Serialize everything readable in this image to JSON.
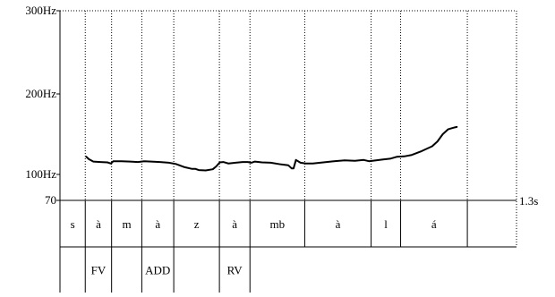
{
  "chart_data": {
    "type": "line",
    "title": "",
    "xlabel": "",
    "ylabel": "",
    "y_tick_labels": [
      "300Hz",
      "200Hz",
      "100Hz",
      "70"
    ],
    "y_tick_values": [
      300,
      200,
      100,
      70
    ],
    "x_end_label": "1.3s",
    "x_range": [
      0,
      1.3
    ],
    "grid": "dotted vertical segment boundaries",
    "segments": [
      {
        "label": "s",
        "start": 0.0,
        "end": 0.072
      },
      {
        "label": "à",
        "start": 0.072,
        "end": 0.147
      },
      {
        "label": "m",
        "start": 0.147,
        "end": 0.233
      },
      {
        "label": "à",
        "start": 0.233,
        "end": 0.324
      },
      {
        "label": "z",
        "start": 0.324,
        "end": 0.454
      },
      {
        "label": "à",
        "start": 0.454,
        "end": 0.541
      },
      {
        "label": "mb",
        "start": 0.541,
        "end": 0.697
      },
      {
        "label": "à",
        "start": 0.697,
        "end": 0.886
      },
      {
        "label": "l",
        "start": 0.886,
        "end": 0.97
      },
      {
        "label": "á",
        "start": 0.97,
        "end": 1.16
      }
    ],
    "annotations": [
      {
        "label": "FV",
        "start": 0.072,
        "end": 0.147
      },
      {
        "label": "ADD",
        "start": 0.233,
        "end": 0.324
      },
      {
        "label": "RV",
        "start": 0.454,
        "end": 0.541
      }
    ],
    "series": [
      {
        "values": [
          [
            0.075,
            122
          ],
          [
            0.082,
            119
          ],
          [
            0.095,
            116
          ],
          [
            0.115,
            115.5
          ],
          [
            0.135,
            115
          ],
          [
            0.145,
            113.5
          ],
          [
            0.152,
            116.5
          ],
          [
            0.175,
            116.5
          ],
          [
            0.2,
            116
          ],
          [
            0.222,
            115.5
          ],
          [
            0.24,
            116.5
          ],
          [
            0.26,
            116
          ],
          [
            0.285,
            115.5
          ],
          [
            0.31,
            114.5
          ],
          [
            0.33,
            113
          ],
          [
            0.355,
            109
          ],
          [
            0.375,
            107
          ],
          [
            0.385,
            107
          ],
          [
            0.395,
            105.5
          ],
          [
            0.415,
            105
          ],
          [
            0.435,
            106.5
          ],
          [
            0.445,
            110
          ],
          [
            0.455,
            115
          ],
          [
            0.465,
            115.5
          ],
          [
            0.48,
            113.5
          ],
          [
            0.5,
            114.5
          ],
          [
            0.52,
            115.5
          ],
          [
            0.535,
            115.5
          ],
          [
            0.545,
            114.5
          ],
          [
            0.555,
            116
          ],
          [
            0.575,
            115
          ],
          [
            0.6,
            114.5
          ],
          [
            0.63,
            112.5
          ],
          [
            0.65,
            111.5
          ],
          [
            0.66,
            107.5
          ],
          [
            0.665,
            107.5
          ],
          [
            0.672,
            118
          ],
          [
            0.685,
            114.5
          ],
          [
            0.7,
            113.5
          ],
          [
            0.72,
            113.5
          ],
          [
            0.75,
            115
          ],
          [
            0.78,
            116.5
          ],
          [
            0.81,
            117.5
          ],
          [
            0.84,
            117
          ],
          [
            0.865,
            118
          ],
          [
            0.88,
            116.5
          ],
          [
            0.9,
            117.5
          ],
          [
            0.92,
            118.5
          ],
          [
            0.94,
            119.5
          ],
          [
            0.96,
            122
          ],
          [
            0.98,
            122.5
          ],
          [
            1.0,
            124
          ],
          [
            1.03,
            129
          ],
          [
            1.06,
            135
          ],
          [
            1.075,
            141
          ],
          [
            1.09,
            150
          ],
          [
            1.105,
            156
          ],
          [
            1.12,
            158
          ],
          [
            1.13,
            159
          ]
        ]
      }
    ]
  }
}
